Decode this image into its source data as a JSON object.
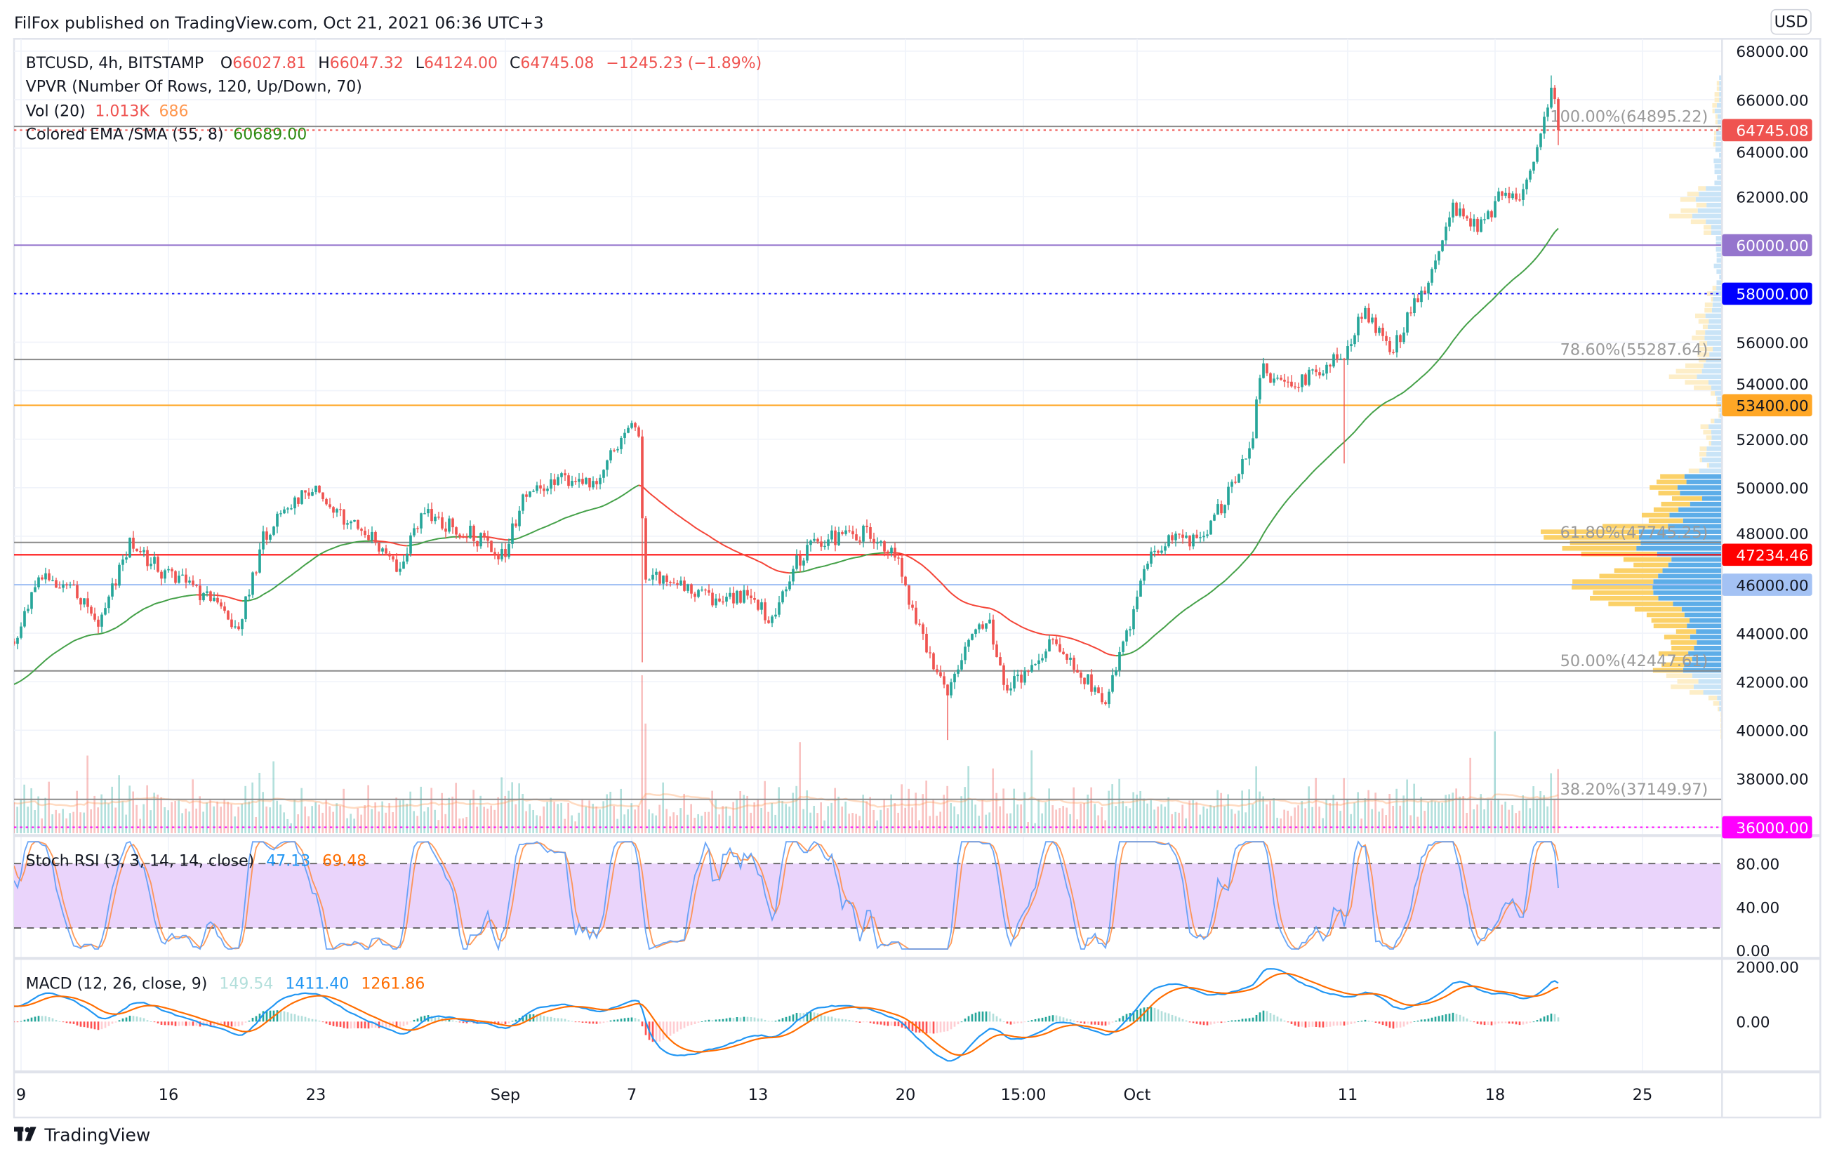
{
  "header": {
    "published": "FilFox published on TradingView.com, Oct 21, 2021 06:36 UTC+3"
  },
  "legend": {
    "symbol": "BTCUSD, 4h, BITSTAMP",
    "o_label": "O",
    "o": "66027.81",
    "h_label": "H",
    "h": "66047.32",
    "l_label": "L",
    "l": "64124.00",
    "c_label": "C",
    "c": "64745.08",
    "change": "−1245.23 (−1.89%)",
    "vpvr": "VPVR (Number Of Rows, 120, Up/Down, 70)",
    "vol_label": "Vol (20)",
    "vol_value": "1.013K",
    "vol_ma": "686",
    "ema_label": "Colored EMA /SMA (55, 8)",
    "ema_value": "60689.00"
  },
  "price_axis": {
    "currency": "USD",
    "ticks": [
      "68000.00",
      "66000.00",
      "64000.00",
      "62000.00",
      "56000.00",
      "54000.00",
      "52000.00",
      "50000.00",
      "48000.00",
      "44000.00",
      "42000.00",
      "40000.00",
      "38000.00"
    ]
  },
  "levels": [
    {
      "price": 64745.08,
      "label": "64745.08",
      "color": "#ef5350",
      "text_color": "#ffffff",
      "style": "dotted"
    },
    {
      "price": 60000,
      "label": "60000.00",
      "color": "#9575cd",
      "text_color": "#ffffff",
      "style": "solid"
    },
    {
      "price": 58000,
      "label": "58000.00",
      "color": "#0000ff",
      "text_color": "#ffffff",
      "style": "dotted"
    },
    {
      "price": 53400,
      "label": "53400.00",
      "color": "#ffa726",
      "text_color": "#131722",
      "style": "solid"
    },
    {
      "price": 47234.46,
      "label": "47234.46",
      "color": "#ff0000",
      "text_color": "#ffffff",
      "style": "solid"
    },
    {
      "price": 46000,
      "label": "46000.00",
      "color": "#a4c2f4",
      "text_color": "#131722",
      "style": "solid"
    },
    {
      "price": 36000,
      "label": "36000.00",
      "color": "#ff00ff",
      "text_color": "#ffffff",
      "style": "dotted"
    }
  ],
  "fib": [
    {
      "price": 64895.22,
      "label": "100.00%(64895.22)"
    },
    {
      "price": 55287.64,
      "label": "78.60%(55287.64)"
    },
    {
      "price": 47745.25,
      "label": "61.80%(47745.25)"
    },
    {
      "price": 42447.61,
      "label": "50.00%(42447.61)"
    },
    {
      "price": 37149.97,
      "label": "38.20%(37149.97)"
    }
  ],
  "stoch": {
    "label": "Stoch RSI (3, 3, 14, 14, close)",
    "k": "47.13",
    "d": "69.48",
    "ticks": [
      "80.00",
      "40.00",
      "0.00"
    ],
    "k_color": "#2196f3",
    "d_color": "#ff6d00"
  },
  "macd": {
    "label": "MACD (12, 26, close, 9)",
    "hist": "149.54",
    "macd": "1411.40",
    "signal": "1261.86",
    "ticks": [
      "2000.00",
      "0.00"
    ]
  },
  "time_axis": [
    {
      "label": "9",
      "day": 0
    },
    {
      "label": "16",
      "day": 7
    },
    {
      "label": "23",
      "day": 14
    },
    {
      "label": "Sep",
      "day": 23
    },
    {
      "label": "7",
      "day": 29
    },
    {
      "label": "13",
      "day": 35
    },
    {
      "label": "20",
      "day": 42
    },
    {
      "label": "15:00",
      "day": 47.6
    },
    {
      "label": "Oct",
      "day": 53
    },
    {
      "label": "11",
      "day": 63
    },
    {
      "label": "18",
      "day": 70
    },
    {
      "label": "25",
      "day": 77
    }
  ],
  "footer": {
    "brand": "TradingView"
  },
  "colors": {
    "up": "#26a69a",
    "down": "#ef5350",
    "ema_up": "#43a047",
    "ema_down": "#f44336"
  },
  "chart_data": {
    "type": "candlestick",
    "title": "BTCUSD, 4h, BITSTAMP",
    "ylabel": "USD",
    "ylim": [
      35300,
      68600
    ],
    "x_unit": "days since Aug 9 2021 (4h candles)",
    "price_path": [
      [
        -0.3,
        43800
      ],
      [
        0.7,
        46200
      ],
      [
        2.3,
        46000
      ],
      [
        3.7,
        44300
      ],
      [
        5.1,
        47700
      ],
      [
        6.8,
        46500
      ],
      [
        7.9,
        46200
      ],
      [
        9.3,
        45000
      ],
      [
        10.4,
        44300
      ],
      [
        11.5,
        47900
      ],
      [
        12.3,
        49100
      ],
      [
        14,
        50100
      ],
      [
        15.7,
        48400
      ],
      [
        16.8,
        47900
      ],
      [
        17.9,
        46700
      ],
      [
        19,
        48900
      ],
      [
        21.2,
        48200
      ],
      [
        22.9,
        47200
      ],
      [
        24,
        49800
      ],
      [
        25.7,
        50300
      ],
      [
        27.3,
        50100
      ],
      [
        28.4,
        52000
      ],
      [
        29.3,
        52500
      ],
      [
        29.6,
        46500
      ],
      [
        31.2,
        46200
      ],
      [
        32.9,
        45300
      ],
      [
        34.6,
        45500
      ],
      [
        35.7,
        44500
      ],
      [
        36.8,
        46900
      ],
      [
        37.9,
        47900
      ],
      [
        40.1,
        48100
      ],
      [
        41.5,
        47400
      ],
      [
        42.3,
        45000
      ],
      [
        43.2,
        43100
      ],
      [
        44,
        41600
      ],
      [
        44.8,
        43100
      ],
      [
        45.9,
        44800
      ],
      [
        46.7,
        41600
      ],
      [
        47.9,
        42600
      ],
      [
        49,
        43800
      ],
      [
        50.1,
        42600
      ],
      [
        51.5,
        41200
      ],
      [
        52.3,
        43300
      ],
      [
        53.4,
        46900
      ],
      [
        54.6,
        47900
      ],
      [
        56.2,
        47900
      ],
      [
        57.3,
        49800
      ],
      [
        58.4,
        51500
      ],
      [
        58.9,
        54900
      ],
      [
        60.1,
        54200
      ],
      [
        61.8,
        54900
      ],
      [
        62.9,
        55600
      ],
      [
        63.7,
        57300
      ],
      [
        65.1,
        55600
      ],
      [
        66.2,
        57600
      ],
      [
        67.1,
        59000
      ],
      [
        67.9,
        61700
      ],
      [
        69.3,
        60700
      ],
      [
        70.1,
        61900
      ],
      [
        71.2,
        62100
      ],
      [
        72.1,
        64300
      ],
      [
        72.7,
        66700
      ],
      [
        73.06,
        64745.08
      ]
    ],
    "wicks": [
      [
        29.55,
        42800
      ],
      [
        44,
        39600
      ],
      [
        62.9,
        51000
      ],
      [
        72.7,
        67000
      ]
    ],
    "last_candle": {
      "open": 66027.81,
      "high": 66047.32,
      "low": 64124.0,
      "close": 64745.08
    },
    "ema_last": 60689.0,
    "volume_last": 1013,
    "volume_ma_last": 686
  }
}
